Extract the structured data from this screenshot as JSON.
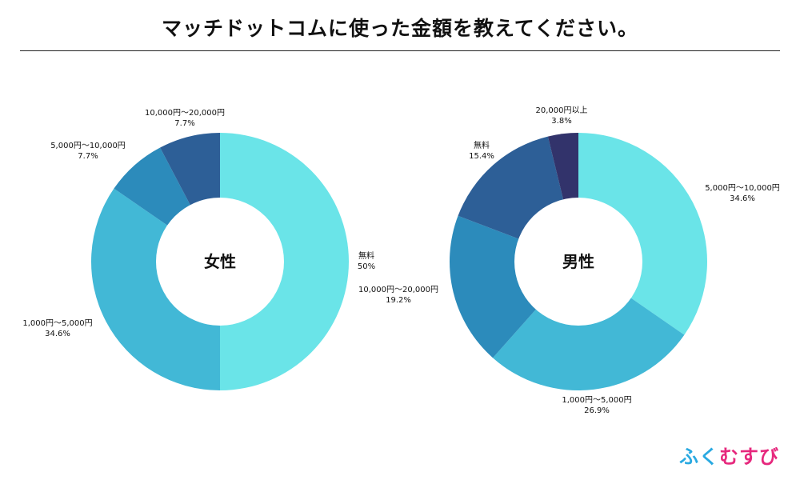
{
  "title": "マッチドットコムに使った金額を教えてください。",
  "brand": {
    "chars": [
      "ふ",
      "く",
      "む",
      "す",
      "び"
    ],
    "colors": [
      "#29a9e1",
      "#29a9e1",
      "#e6287d",
      "#e6287d",
      "#e6287d"
    ]
  },
  "chart_data": [
    {
      "type": "pie",
      "title": "女性",
      "start": "top, clockwise",
      "slices": [
        {
          "label": "無料",
          "percent_text": "50%",
          "value": 50,
          "color": "#6ae4e8"
        },
        {
          "label": "1,000円〜5,000円",
          "percent_text": "34.6%",
          "value": 34.6,
          "color": "#42b8d6"
        },
        {
          "label": "5,000円〜10,000円",
          "percent_text": "7.7%",
          "value": 7.7,
          "color": "#2c8bbb"
        },
        {
          "label": "10,000円〜20,000円",
          "percent_text": "7.7%",
          "value": 7.7,
          "color": "#2d5f97"
        }
      ]
    },
    {
      "type": "pie",
      "title": "男性",
      "start": "top, clockwise",
      "slices": [
        {
          "label": "5,000円〜10,000円",
          "percent_text": "34.6%",
          "value": 34.6,
          "color": "#6ae4e8"
        },
        {
          "label": "1,000円〜5,000円",
          "percent_text": "26.9%",
          "value": 26.9,
          "color": "#42b8d6"
        },
        {
          "label": "10,000円〜20,000円",
          "percent_text": "19.2%",
          "value": 19.2,
          "color": "#2c8bbb"
        },
        {
          "label": "無料",
          "percent_text": "15.4%",
          "value": 15.4,
          "color": "#2d5f97"
        },
        {
          "label": "20,000円以上",
          "percent_text": "3.8%",
          "value": 3.8,
          "color": "#32336b"
        }
      ]
    }
  ]
}
